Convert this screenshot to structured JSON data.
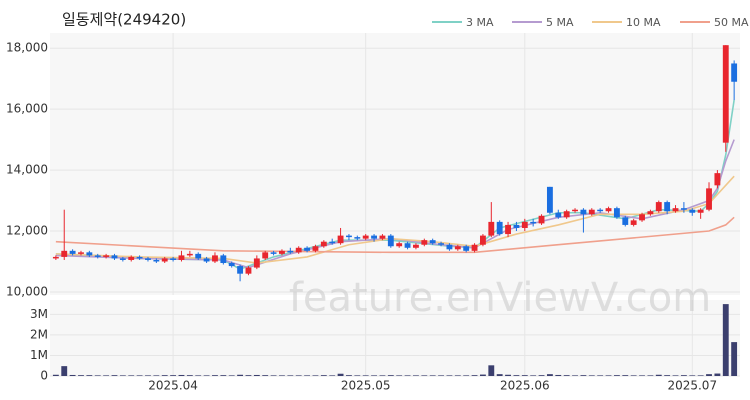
{
  "chart_data": {
    "type": "candlestick",
    "title": "일동제약(249420)",
    "watermark": "feature.enViewV.com",
    "up_color": "#e8262e",
    "down_color": "#1a6ee0",
    "volume_color": "#3b3f6e",
    "grid": true,
    "legend": "top-right",
    "xlim": [
      -0.7,
      81.7
    ],
    "xticks": [
      {
        "value": 14,
        "label": "2025.04"
      },
      {
        "value": 37,
        "label": "2025.05"
      },
      {
        "value": 56,
        "label": "2025.06"
      },
      {
        "value": 76,
        "label": "2025.07"
      }
    ],
    "ylim": [
      9900,
      18500
    ],
    "yticks": [
      {
        "value": 10000,
        "label": "10,000"
      },
      {
        "value": 12000,
        "label": "12,000"
      },
      {
        "value": 14000,
        "label": "14,000"
      },
      {
        "value": 16000,
        "label": "16,000"
      },
      {
        "value": 18000,
        "label": "18,000"
      }
    ],
    "y2lim": [
      0,
      3700000
    ],
    "y2ticks": [
      {
        "value": 0,
        "label": "0"
      },
      {
        "value": 1000000,
        "label": "1M"
      },
      {
        "value": 2000000,
        "label": "2M"
      },
      {
        "value": 3000000,
        "label": "3M"
      }
    ],
    "open": [
      11100,
      11150,
      11350,
      11250,
      11300,
      11200,
      11150,
      11200,
      11100,
      11050,
      11150,
      11100,
      11050,
      11000,
      11100,
      11050,
      11200,
      11250,
      11100,
      11000,
      11200,
      10950,
      10850,
      10600,
      10800,
      11100,
      11300,
      11250,
      11350,
      11300,
      11450,
      11350,
      11500,
      11650,
      11600,
      11850,
      11800,
      11750,
      11850,
      11750,
      11850,
      11500,
      11600,
      11450,
      11550,
      11700,
      11600,
      11550,
      11400,
      11500,
      11350,
      11550,
      11850,
      12300,
      11900,
      12200,
      12100,
      12300,
      12250,
      13450,
      12600,
      12450,
      12650,
      12700,
      12550,
      12700,
      12650,
      12750,
      12450,
      12200,
      12350,
      12550,
      12650,
      12950,
      12650,
      12750,
      12700,
      12600,
      12700,
      13500,
      14900,
      17500
    ],
    "high": [
      11200,
      12700,
      11400,
      11350,
      11350,
      11250,
      11250,
      11250,
      11150,
      11200,
      11200,
      11150,
      11100,
      11150,
      11150,
      11350,
      11350,
      11300,
      11150,
      11300,
      11250,
      11000,
      10900,
      10850,
      11200,
      11350,
      11350,
      11400,
      11450,
      11500,
      11500,
      11550,
      11700,
      11750,
      12100,
      11900,
      11850,
      11900,
      11900,
      11900,
      11900,
      11650,
      11650,
      11600,
      11750,
      11750,
      11650,
      11600,
      11550,
      11550,
      11600,
      11900,
      12950,
      12350,
      12300,
      12300,
      12400,
      12400,
      12550,
      13450,
      12700,
      12700,
      12750,
      12750,
      12750,
      12750,
      12800,
      12800,
      12500,
      12400,
      12600,
      12700,
      13000,
      13000,
      12850,
      12950,
      12750,
      12750,
      13600,
      14000,
      18100,
      17600
    ],
    "low": [
      11050,
      11050,
      11200,
      11200,
      11150,
      11100,
      11100,
      11050,
      11000,
      11000,
      11050,
      11000,
      10950,
      10950,
      11000,
      11000,
      11150,
      11050,
      10950,
      10950,
      10900,
      10800,
      10350,
      10550,
      10750,
      11050,
      11200,
      11200,
      11250,
      11250,
      11300,
      11300,
      11450,
      11550,
      11550,
      11700,
      11700,
      11700,
      11650,
      11700,
      11450,
      11450,
      11400,
      11400,
      11500,
      11550,
      11500,
      11350,
      11350,
      11300,
      11300,
      11500,
      11800,
      11850,
      11800,
      12000,
      12000,
      12150,
      12200,
      12550,
      12400,
      12400,
      12600,
      11950,
      12500,
      12600,
      12600,
      12400,
      12150,
      12150,
      12300,
      12500,
      12600,
      12550,
      12600,
      12600,
      12500,
      12400,
      12650,
      13400,
      14600,
      16300
    ],
    "close": [
      11150,
      11350,
      11250,
      11300,
      11200,
      11150,
      11200,
      11100,
      11050,
      11150,
      11100,
      11050,
      11000,
      11100,
      11050,
      11200,
      11250,
      11100,
      11000,
      11200,
      10950,
      10850,
      10600,
      10800,
      11100,
      11300,
      11250,
      11350,
      11300,
      11450,
      11350,
      11500,
      11650,
      11600,
      11850,
      11800,
      11750,
      11850,
      11750,
      11850,
      11500,
      11600,
      11450,
      11550,
      11700,
      11600,
      11550,
      11400,
      11500,
      11350,
      11550,
      11850,
      12300,
      11900,
      12200,
      12100,
      12300,
      12250,
      12500,
      12600,
      12450,
      12650,
      12700,
      12550,
      12700,
      12650,
      12750,
      12450,
      12200,
      12350,
      12550,
      12650,
      12950,
      12650,
      12750,
      12700,
      12600,
      12700,
      13400,
      13900,
      18100,
      16900
    ],
    "volume": [
      60000,
      480000,
      50000,
      40000,
      40000,
      30000,
      30000,
      40000,
      30000,
      30000,
      30000,
      30000,
      30000,
      40000,
      40000,
      50000,
      40000,
      30000,
      30000,
      40000,
      40000,
      30000,
      60000,
      40000,
      50000,
      40000,
      30000,
      30000,
      30000,
      30000,
      30000,
      30000,
      40000,
      30000,
      110000,
      40000,
      30000,
      30000,
      30000,
      30000,
      40000,
      30000,
      30000,
      30000,
      30000,
      30000,
      30000,
      30000,
      30000,
      30000,
      40000,
      70000,
      520000,
      90000,
      60000,
      40000,
      40000,
      30000,
      40000,
      90000,
      50000,
      40000,
      30000,
      40000,
      30000,
      30000,
      30000,
      40000,
      40000,
      30000,
      30000,
      30000,
      60000,
      40000,
      30000,
      40000,
      30000,
      30000,
      90000,
      120000,
      3500000,
      1650000
    ],
    "series": [
      {
        "name": "3 MA",
        "color": "#7fd1c6",
        "x": [
          0,
          10,
          20,
          22,
          26,
          34,
          40,
          47,
          50,
          53,
          60,
          63,
          68,
          72,
          77,
          78,
          79,
          80,
          81
        ],
        "values": [
          11250,
          11100,
          11050,
          10750,
          11150,
          11700,
          11700,
          11500,
          11450,
          12100,
          12600,
          12600,
          12400,
          12700,
          12650,
          12900,
          13300,
          14500,
          16300
        ]
      },
      {
        "name": "5 MA",
        "color": "#b59bd0",
        "x": [
          0,
          10,
          20,
          23,
          28,
          34,
          40,
          46,
          50,
          54,
          60,
          65,
          70,
          75,
          78,
          79,
          80,
          81
        ],
        "values": [
          11200,
          11100,
          11050,
          10800,
          11250,
          11650,
          11750,
          11550,
          11450,
          12050,
          12450,
          12600,
          12400,
          12700,
          13000,
          13400,
          14300,
          15000
        ]
      },
      {
        "name": "10 MA",
        "color": "#f0c88c",
        "x": [
          0,
          10,
          20,
          24,
          30,
          35,
          40,
          45,
          50,
          55,
          60,
          65,
          70,
          75,
          78,
          80,
          81
        ],
        "values": [
          11250,
          11150,
          11100,
          10950,
          11150,
          11550,
          11750,
          11650,
          11500,
          11900,
          12200,
          12550,
          12550,
          12650,
          12900,
          13500,
          13800
        ]
      },
      {
        "name": "50 MA",
        "color": "#f0a08c",
        "x": [
          0,
          20,
          40,
          50,
          60,
          70,
          78,
          80,
          81
        ],
        "values": [
          11650,
          11350,
          11300,
          11300,
          11550,
          11800,
          12000,
          12200,
          12450
        ]
      }
    ]
  }
}
